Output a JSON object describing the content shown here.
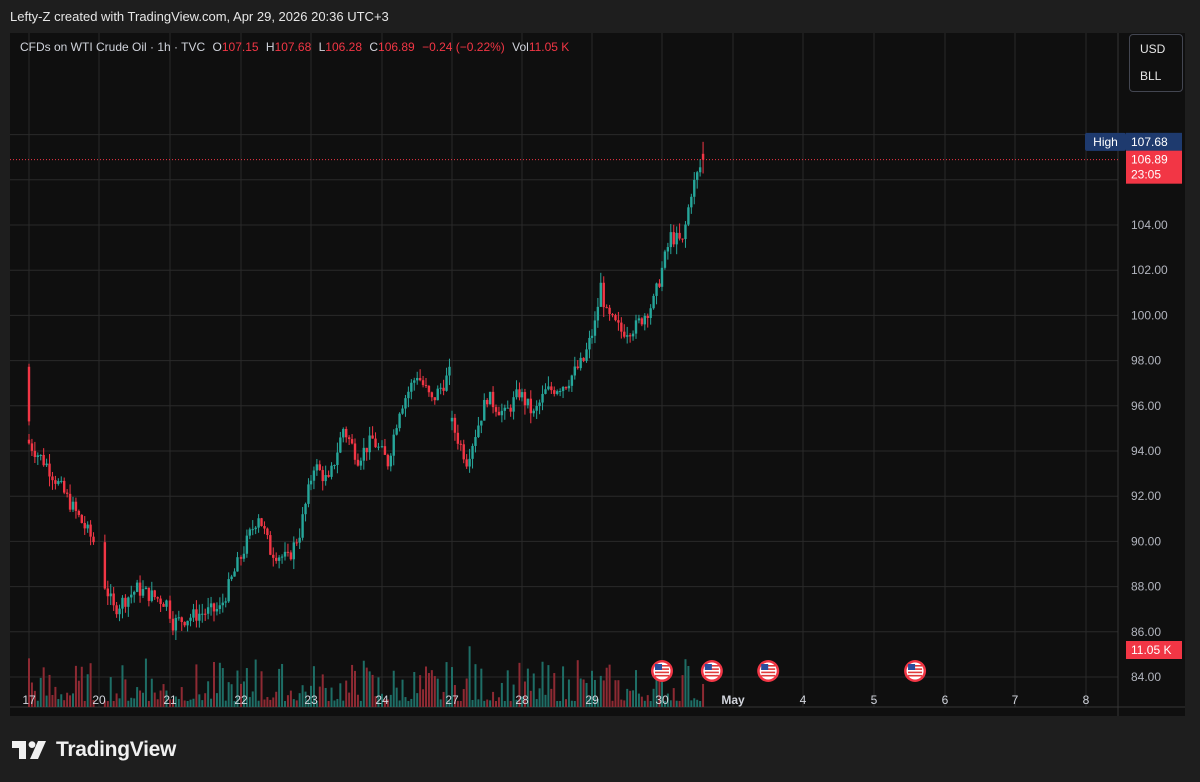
{
  "header": {
    "credit": "Lefty-Z created with TradingView.com, Apr 29, 2026 20:36 UTC+3"
  },
  "legend": {
    "symbol": "CFDs on WTI Crude Oil · 1h · TVC",
    "open_label": "O",
    "open": "107.15",
    "high_label": "H",
    "high": "107.68",
    "low_label": "L",
    "low": "106.28",
    "close_label": "C",
    "close": "106.89",
    "change": "−0.24 (−0.22%)",
    "vol_label": "Vol",
    "vol": "11.05 K"
  },
  "unit_selector": {
    "currency": "USD",
    "unit": "BLL"
  },
  "price_scale": {
    "labels": [
      "84.00",
      "86.00",
      "88.00",
      "90.00",
      "92.00",
      "94.00",
      "96.00",
      "98.00",
      "100.00",
      "102.00",
      "104.00"
    ],
    "high_tag_label": "High",
    "high_tag_value": "107.68",
    "last_price": "106.89",
    "countdown": "23:05",
    "volume_value": "11.05 K"
  },
  "time_axis": {
    "labels": [
      "17",
      "20",
      "21",
      "22",
      "23",
      "24",
      "27",
      "28",
      "29",
      "30",
      "May",
      "4",
      "5",
      "6",
      "7",
      "8"
    ]
  },
  "branding": {
    "name": "TradingView"
  },
  "colors": {
    "up": "#26a69a",
    "down": "#f23645",
    "background": "#0f0f0f",
    "high_tag": "#1e3a6e"
  },
  "icons": {
    "event_markers": "us-flag-icon",
    "logo": "tradingview-logo-icon"
  },
  "chart_data": {
    "type": "candlestick",
    "timeframe": "1h",
    "ylim": [
      84,
      108
    ],
    "last_close": 106.89,
    "session_high": 107.68,
    "anchors": [
      {
        "x": "Apr 16 23:00",
        "close": 94.5
      },
      {
        "x": "Apr 17 06:00",
        "close": 93.4
      },
      {
        "x": "Apr 17 22:00",
        "close": 90.0
      },
      {
        "x": "Apr 20 02:00",
        "close": 88.1
      },
      {
        "x": "Apr 20 05:00",
        "close": 87.0
      },
      {
        "x": "Apr 20 13:00",
        "close": 87.9
      },
      {
        "x": "Apr 20 23:00",
        "close": 87.3
      },
      {
        "x": "Apr 21 01:00",
        "close": 86.4
      },
      {
        "x": "Apr 21 10:00",
        "close": 86.8
      },
      {
        "x": "Apr 21 17:00",
        "close": 87.0
      },
      {
        "x": "Apr 22 03:00",
        "close": 90.3
      },
      {
        "x": "Apr 22 06:00",
        "close": 91.2
      },
      {
        "x": "Apr 22 10:00",
        "close": 89.6
      },
      {
        "x": "Apr 22 16:00",
        "close": 89.2
      },
      {
        "x": "Apr 22 20:00",
        "close": 90.4
      },
      {
        "x": "Apr 23 01:00",
        "close": 93.4
      },
      {
        "x": "Apr 23 06:00",
        "close": 92.6
      },
      {
        "x": "Apr 23 11:00",
        "close": 95.0
      },
      {
        "x": "Apr 23 16:00",
        "close": 93.7
      },
      {
        "x": "Apr 23 21:00",
        "close": 94.5
      },
      {
        "x": "Apr 24 02:00",
        "close": 93.5
      },
      {
        "x": "Apr 24 06:00",
        "close": 95.9
      },
      {
        "x": "Apr 24 12:00",
        "close": 97.4
      },
      {
        "x": "Apr 24 17:00",
        "close": 96.2
      },
      {
        "x": "Apr 24 23:00",
        "close": 97.4
      },
      {
        "x": "Apr 26 23:00",
        "close": 95.5
      },
      {
        "x": "Apr 27 05:00",
        "close": 93.6
      },
      {
        "x": "Apr 27 12:00",
        "close": 96.4
      },
      {
        "x": "Apr 27 18:00",
        "close": 95.6
      },
      {
        "x": "Apr 27 23:00",
        "close": 96.6
      },
      {
        "x": "Apr 28 04:00",
        "close": 95.6
      },
      {
        "x": "Apr 28 08:00",
        "close": 96.6
      },
      {
        "x": "Apr 28 15:00",
        "close": 97.0
      },
      {
        "x": "Apr 28 21:00",
        "close": 98.0
      },
      {
        "x": "Apr 29 01:00",
        "close": 99.6
      },
      {
        "x": "Apr 29 03:00",
        "close": 101.3
      },
      {
        "x": "Apr 29 05:00",
        "close": 100.0
      },
      {
        "x": "Apr 29 10:00",
        "close": 99.3
      },
      {
        "x": "Apr 29 15:00",
        "close": 99.5
      },
      {
        "x": "Apr 29 21:00",
        "close": 100.6
      },
      {
        "x": "Apr 30 03:00",
        "close": 103.5
      },
      {
        "x": "Apr 30 07:00",
        "close": 103.2
      },
      {
        "x": "Apr 30 10:00",
        "close": 105.5
      },
      {
        "x": "Apr 30 14:00",
        "close": 106.9
      }
    ],
    "event_markers": [
      "Apr 30 00:00",
      "Apr 30 17:00",
      "May 1 12:00",
      "May 5 14:00"
    ]
  }
}
